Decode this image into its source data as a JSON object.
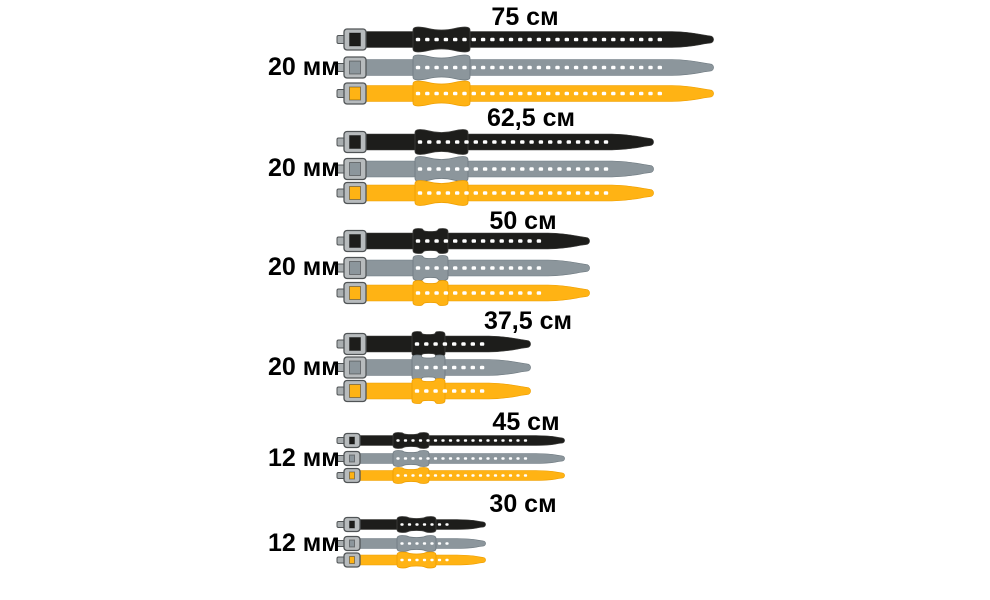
{
  "background_color": "#ffffff",
  "text_color": "#000000",
  "chart_data": {
    "type": "pictorial-size-comparison",
    "title": "",
    "description": "Six groups of tension straps compared by length and width; each group shows a black, a gray and a yellow strap with a metal buckle, a bow-tie keeper and a row of lash holes.",
    "unit_length": "см",
    "unit_width": "мм",
    "groups": [
      {
        "length_label": "75 см",
        "length_cm": 75,
        "width_label": "20 мм",
        "width_mm": 20
      },
      {
        "length_label": "62,5 см",
        "length_cm": 62.5,
        "width_label": "20 мм",
        "width_mm": 20
      },
      {
        "length_label": "50 см",
        "length_cm": 50,
        "width_label": "20 мм",
        "width_mm": 20
      },
      {
        "length_label": "37,5 см",
        "length_cm": 37.5,
        "width_label": "20 мм",
        "width_mm": 20
      },
      {
        "length_label": "45 см",
        "length_cm": 45,
        "width_label": "12 мм",
        "width_mm": 12
      },
      {
        "length_label": "30 см",
        "length_cm": 30,
        "width_label": "12 мм",
        "width_mm": 12
      }
    ],
    "straps_per_group": 3,
    "strap_colors": [
      {
        "name": "black",
        "hex": "#1d1d1b",
        "edge": "#3f3f3d"
      },
      {
        "name": "gray",
        "hex": "#8c969c",
        "edge": "#6f7a81"
      },
      {
        "name": "yellow",
        "hex": "#ffb314",
        "edge": "#ee9e00"
      }
    ],
    "buckle": {
      "frame_hex": "#b7bbbd",
      "outline_hex": "#505456",
      "pin_hex": "#a9aeb0",
      "hole_hex": "#ffffff"
    }
  }
}
